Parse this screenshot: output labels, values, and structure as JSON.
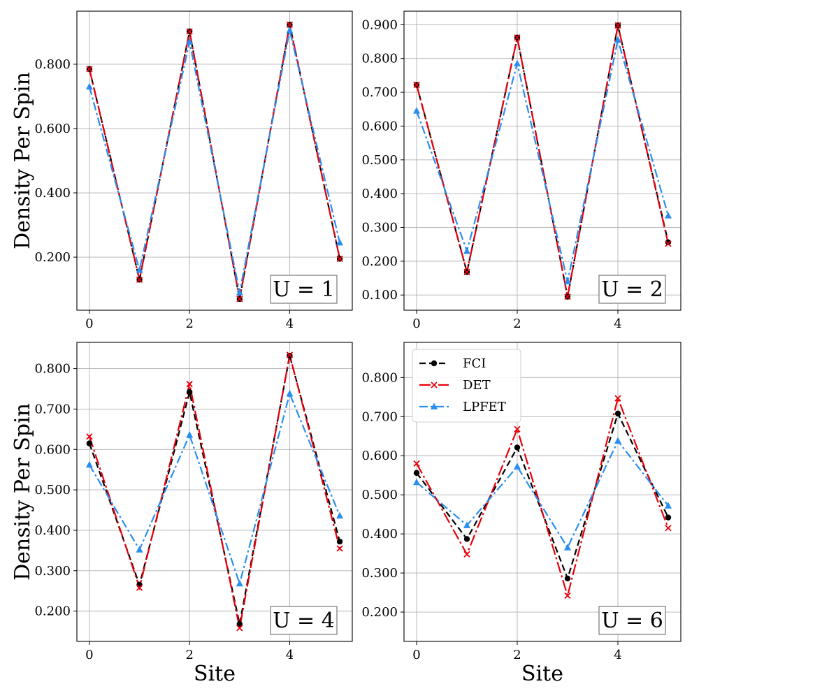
{
  "chart_data": [
    {
      "type": "line",
      "panel_label": "U = 1",
      "xlabel": "",
      "ylabel": "Density Per Spin",
      "x": [
        0,
        1,
        2,
        3,
        4,
        5
      ],
      "xticks": [
        "0",
        "2",
        "4"
      ],
      "xlim": [
        -0.25,
        5.25
      ],
      "ylim": [
        0.035,
        0.965
      ],
      "yticks": [
        "0.200",
        "0.400",
        "0.600",
        "0.800"
      ],
      "grid": true,
      "series": [
        {
          "name": "FCI",
          "values": [
            0.785,
            0.13,
            0.902,
            0.07,
            0.923,
            0.195
          ]
        },
        {
          "name": "DET",
          "values": [
            0.785,
            0.13,
            0.902,
            0.07,
            0.923,
            0.195
          ]
        },
        {
          "name": "LPFET",
          "values": [
            0.73,
            0.16,
            0.87,
            0.09,
            0.905,
            0.245
          ]
        }
      ]
    },
    {
      "type": "line",
      "panel_label": "U = 2",
      "xlabel": "",
      "ylabel": "",
      "x": [
        0,
        1,
        2,
        3,
        4,
        5
      ],
      "xticks": [
        "0",
        "2",
        "4"
      ],
      "xlim": [
        -0.25,
        5.25
      ],
      "ylim": [
        0.055,
        0.94
      ],
      "yticks": [
        "0.100",
        "0.200",
        "0.300",
        "0.400",
        "0.500",
        "0.600",
        "0.700",
        "0.800",
        "0.900"
      ],
      "grid": true,
      "series": [
        {
          "name": "FCI",
          "values": [
            0.722,
            0.168,
            0.862,
            0.095,
            0.898,
            0.256
          ]
        },
        {
          "name": "DET",
          "values": [
            0.722,
            0.168,
            0.862,
            0.095,
            0.898,
            0.252
          ]
        },
        {
          "name": "LPFET",
          "values": [
            0.645,
            0.23,
            0.785,
            0.14,
            0.855,
            0.335
          ]
        }
      ]
    },
    {
      "type": "line",
      "panel_label": "U = 4",
      "xlabel": "Site",
      "ylabel": "Density Per Spin",
      "x": [
        0,
        1,
        2,
        3,
        4,
        5
      ],
      "xticks": [
        "0",
        "2",
        "4"
      ],
      "xlim": [
        -0.25,
        5.25
      ],
      "ylim": [
        0.125,
        0.865
      ],
      "yticks": [
        "0.200",
        "0.300",
        "0.400",
        "0.500",
        "0.600",
        "0.700",
        "0.800"
      ],
      "grid": true,
      "series": [
        {
          "name": "FCI",
          "values": [
            0.615,
            0.265,
            0.742,
            0.168,
            0.832,
            0.372
          ]
        },
        {
          "name": "DET",
          "values": [
            0.632,
            0.258,
            0.762,
            0.158,
            0.834,
            0.355
          ]
        },
        {
          "name": "LPFET",
          "values": [
            0.562,
            0.352,
            0.636,
            0.268,
            0.738,
            0.436
          ]
        }
      ]
    },
    {
      "type": "line",
      "panel_label": "U = 6",
      "xlabel": "Site",
      "ylabel": "",
      "x": [
        0,
        1,
        2,
        3,
        4,
        5
      ],
      "xticks": [
        "0",
        "2",
        "4"
      ],
      "xlim": [
        -0.25,
        5.25
      ],
      "ylim": [
        0.125,
        0.89
      ],
      "yticks": [
        "0.200",
        "0.300",
        "0.400",
        "0.500",
        "0.600",
        "0.700",
        "0.800"
      ],
      "grid": true,
      "legend_position": "top-left",
      "series": [
        {
          "name": "FCI",
          "values": [
            0.556,
            0.387,
            0.621,
            0.286,
            0.708,
            0.442
          ]
        },
        {
          "name": "DET",
          "values": [
            0.58,
            0.348,
            0.668,
            0.242,
            0.747,
            0.415
          ]
        },
        {
          "name": "LPFET",
          "values": [
            0.532,
            0.422,
            0.572,
            0.365,
            0.638,
            0.472
          ]
        }
      ]
    }
  ],
  "legend": {
    "entries": [
      "FCI",
      "DET",
      "LPFET"
    ]
  },
  "colors": {
    "FCI": "#000000",
    "DET": "#e8000b",
    "LPFET": "#2a8ef0",
    "grid": "#b0b0b0"
  }
}
